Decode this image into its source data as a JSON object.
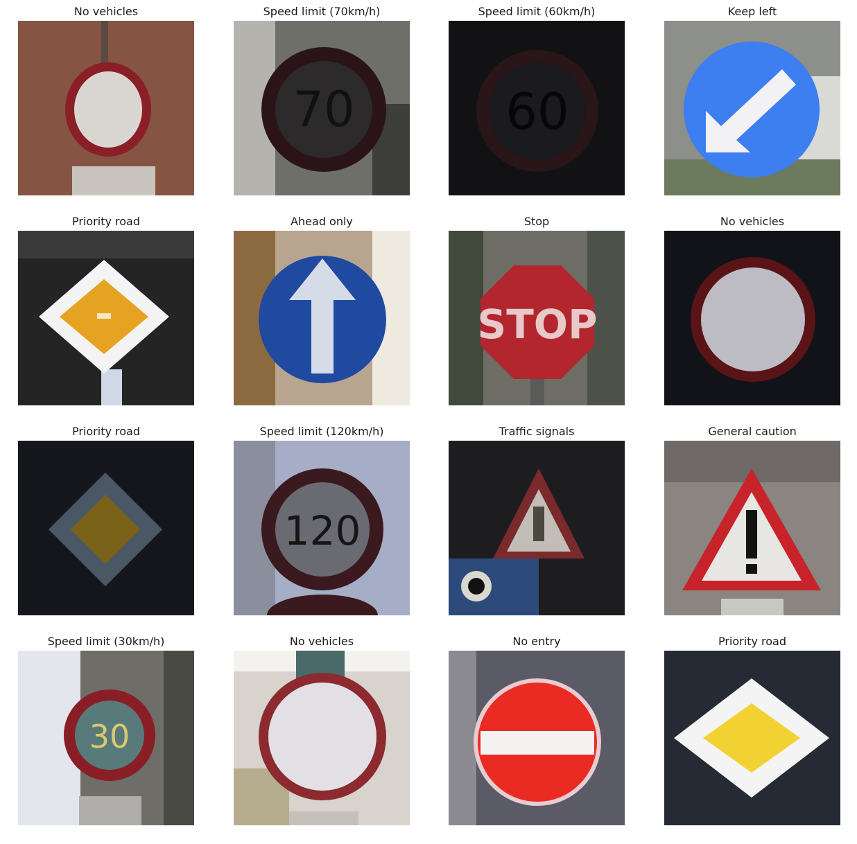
{
  "figure": {
    "panels": [
      {
        "title": "No vehicles",
        "sign": "no-vehicles",
        "background": "#8c5a48"
      },
      {
        "title": "Speed limit (70km/h)",
        "sign": "speed-limit",
        "number": "70",
        "background": "#6f6f6a"
      },
      {
        "title": "Speed limit (60km/h)",
        "sign": "speed-limit",
        "number": "60",
        "background": "#121215"
      },
      {
        "title": "Keep left",
        "sign": "keep-left",
        "background": "#8d8f8a"
      },
      {
        "title": "Priority road",
        "sign": "priority-road",
        "background": "#242424"
      },
      {
        "title": "Ahead only",
        "sign": "ahead-only",
        "background": "#b8a590"
      },
      {
        "title": "Stop",
        "sign": "stop",
        "background": "#6d6d66"
      },
      {
        "title": "No vehicles",
        "sign": "no-vehicles",
        "background": "#111318"
      },
      {
        "title": "Priority road",
        "sign": "priority-road",
        "background": "#15171d"
      },
      {
        "title": "Speed limit (120km/h)",
        "sign": "speed-limit",
        "number": "120",
        "background": "#a6adc6"
      },
      {
        "title": "Traffic signals",
        "sign": "traffic-signals",
        "background": "#1d1d20"
      },
      {
        "title": "General caution",
        "sign": "general-caution",
        "background": "#8a8580"
      },
      {
        "title": "Speed limit (30km/h)",
        "sign": "speed-limit",
        "number": "30",
        "background": "#6e6d68"
      },
      {
        "title": "No vehicles",
        "sign": "no-vehicles",
        "background": "#d8d3cc"
      },
      {
        "title": "No entry",
        "sign": "no-entry",
        "background": "#5a5b66"
      },
      {
        "title": "Priority road",
        "sign": "priority-road",
        "background": "#262a34"
      }
    ]
  }
}
